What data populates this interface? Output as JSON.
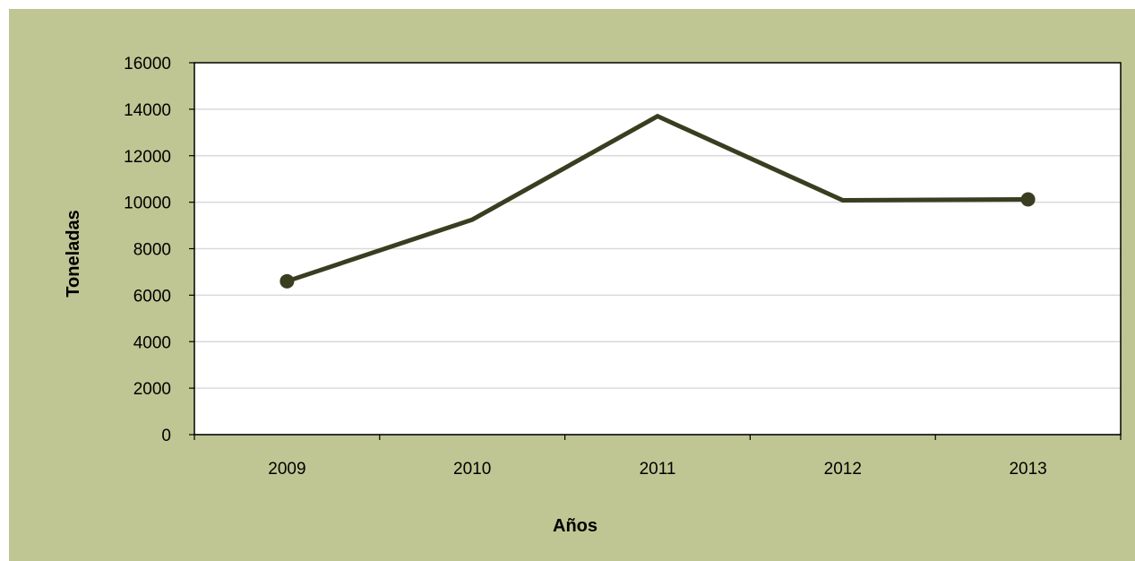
{
  "colors": {
    "page_background": "#ffffff",
    "chart_area": "#bfc693",
    "plot_area": "#ffffff",
    "gridline": "#d9d9d9",
    "series_line": "#3a3d20",
    "axis_line": "#a6a6a6"
  },
  "chart_data": {
    "type": "line",
    "title": "",
    "xlabel": "Años",
    "ylabel": "Toneladas",
    "categories": [
      "2009",
      "2010",
      "2011",
      "2012",
      "2013"
    ],
    "series": [
      {
        "values": [
          6600,
          9250,
          13700,
          10080,
          10120
        ]
      }
    ],
    "markers": [
      "start",
      "end"
    ],
    "ylim": [
      0,
      16000
    ],
    "yticks": [
      0,
      2000,
      4000,
      6000,
      8000,
      10000,
      12000,
      14000,
      16000
    ],
    "grid": "horizontal",
    "legend": "none"
  }
}
